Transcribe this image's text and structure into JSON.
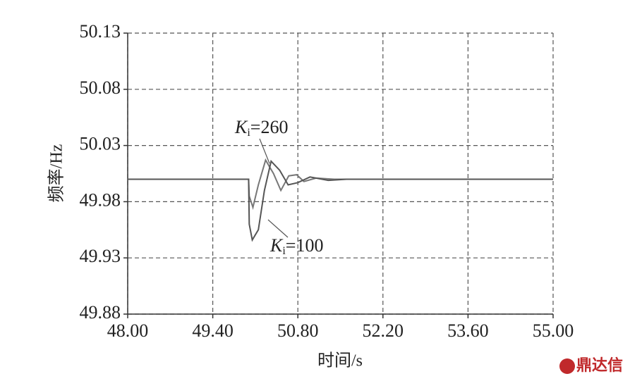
{
  "chart_data": {
    "type": "line",
    "xlabel": "时间/s",
    "ylabel": "频率/Hz",
    "xlim": [
      48,
      55
    ],
    "ylim": [
      49.88,
      50.13
    ],
    "xticks": [
      {
        "value": 48,
        "label": "48.00"
      },
      {
        "value": 49.4,
        "label": "49.40"
      },
      {
        "value": 50.8,
        "label": "50.80"
      },
      {
        "value": 52.2,
        "label": "52.20"
      },
      {
        "value": 53.6,
        "label": "53.60"
      },
      {
        "value": 55,
        "label": "55.00"
      }
    ],
    "yticks": [
      49.88,
      49.93,
      49.98,
      50.03,
      50.08,
      50.13
    ],
    "grid": true,
    "series": [
      {
        "color": "#777777",
        "x": [
          48,
          49.99,
          50.0,
          50.06,
          50.15,
          50.27,
          50.4,
          50.52,
          50.65,
          50.78,
          50.9,
          51.1,
          51.4,
          55
        ],
        "values": [
          50.0,
          50.0,
          49.985,
          49.975,
          49.995,
          50.017,
          50.005,
          49.99,
          50.003,
          50.004,
          49.998,
          50.001,
          50.0,
          50.0
        ]
      },
      {
        "color": "#555555",
        "x": [
          48,
          49.99,
          50.0,
          50.05,
          50.15,
          50.25,
          50.36,
          50.5,
          50.64,
          50.8,
          51.0,
          51.3,
          51.6,
          55
        ],
        "values": [
          50.0,
          50.0,
          49.96,
          49.946,
          49.955,
          49.99,
          50.016,
          50.008,
          49.995,
          49.997,
          50.002,
          49.999,
          50.0,
          50.0
        ]
      }
    ],
    "annotations": [
      {
        "parts": [
          "K",
          "i",
          "=260"
        ]
      },
      {
        "parts": [
          "K",
          "i",
          "=100"
        ]
      }
    ]
  },
  "watermark": "鼎达信"
}
